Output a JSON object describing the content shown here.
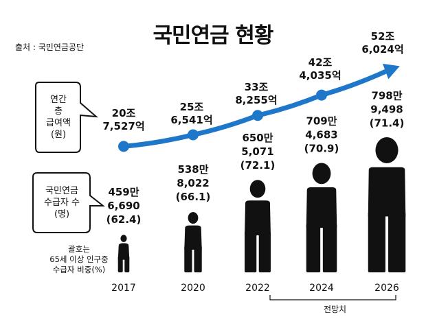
{
  "header": {
    "title": "국민연금 현황",
    "source": "출처 : 국민연금공단"
  },
  "legend": {
    "line_bubble": [
      "연간",
      "총",
      "급여액",
      "(원)"
    ],
    "people_bubble": [
      "국민연금",
      "수급자 수",
      "(명)"
    ],
    "note": [
      "괄호는",
      "65세 이상 인구중",
      "수급자 비중(%)"
    ]
  },
  "forecast_label": "전망치",
  "colors": {
    "line": "#1f77c9",
    "people": "#111111"
  },
  "chart_data": [
    {
      "type": "line",
      "categories": [
        "2017",
        "2020",
        "2022",
        "2024",
        "2026"
      ],
      "series": [
        {
          "values": [
            207527,
            256541,
            338255,
            424035,
            526024
          ]
        }
      ],
      "unit": "억원",
      "point_labels": [
        [
          "20조",
          "7,527억"
        ],
        [
          "25조",
          "6,541억"
        ],
        [
          "33조",
          "8,255억"
        ],
        [
          "42조",
          "4,035억"
        ],
        [
          "52조",
          "6,024억"
        ]
      ],
      "forecast_from": "2024"
    },
    {
      "type": "bar",
      "categories": [
        "2017",
        "2020",
        "2022",
        "2024",
        "2026"
      ],
      "series": [
        {
          "values": [
            4596690,
            5388022,
            6505071,
            7094683,
            7989498
          ]
        },
        {
          "values": [
            62.4,
            66.1,
            72.1,
            70.9,
            71.4
          ]
        }
      ],
      "point_labels": [
        [
          "459만",
          "6,690",
          "(62.4)"
        ],
        [
          "538만",
          "8,022",
          "(66.1)"
        ],
        [
          "650만",
          "5,071",
          "(72.1)"
        ],
        [
          "709만",
          "4,683",
          "(70.9)"
        ],
        [
          "798만",
          "9,498",
          "(71.4)"
        ]
      ]
    }
  ]
}
